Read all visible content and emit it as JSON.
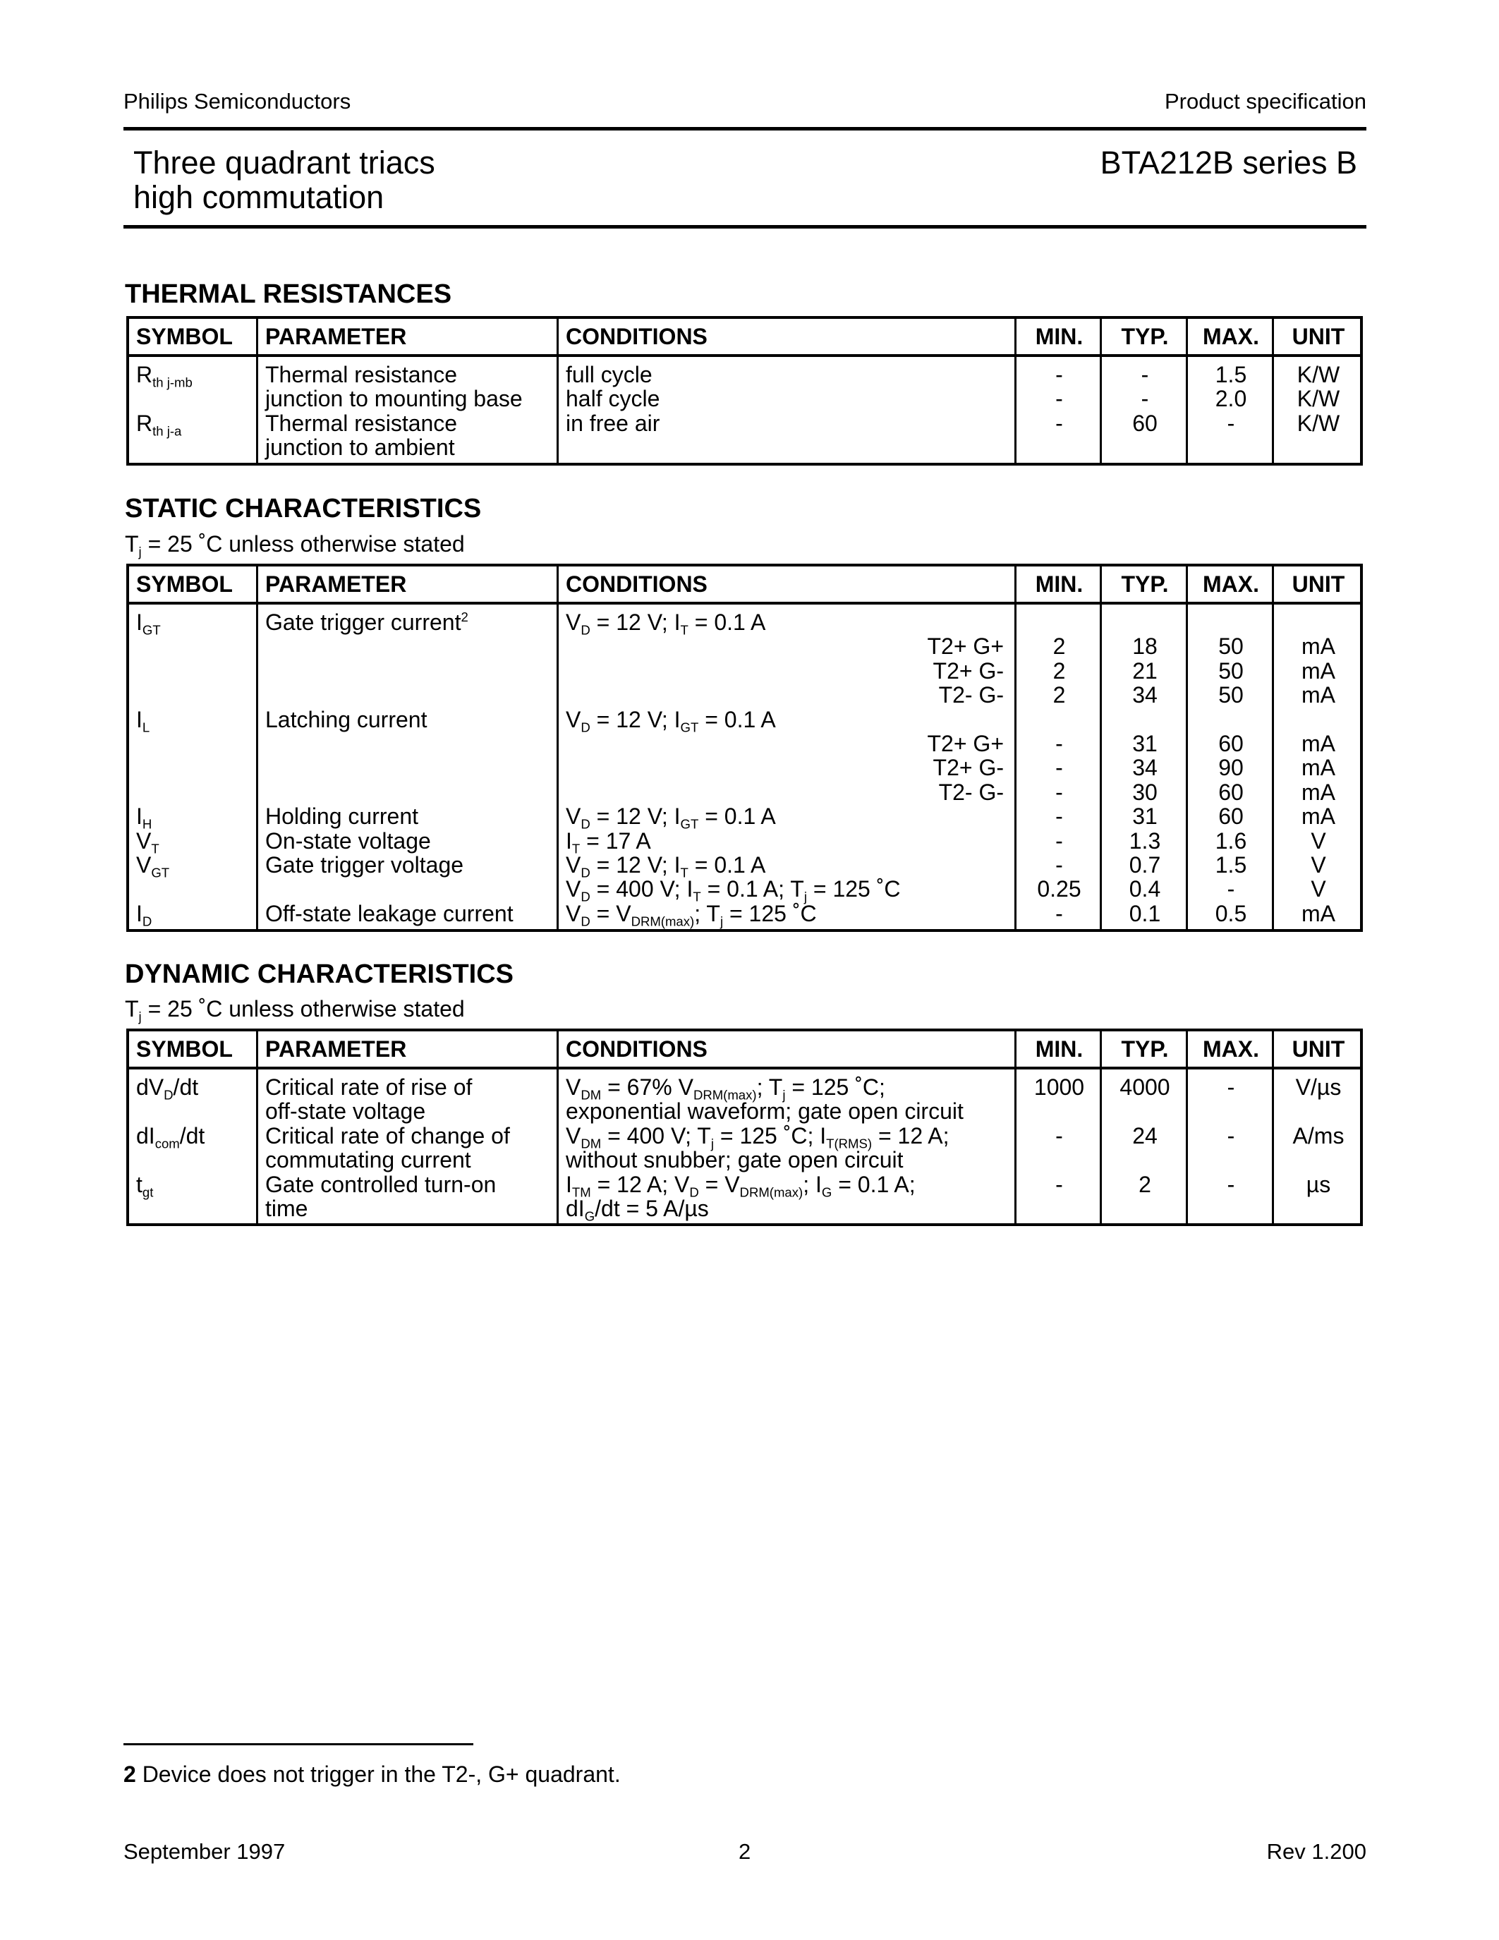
{
  "header": {
    "company": "Philips Semiconductors",
    "doc_type": "Product specification",
    "title_lines": [
      "Three quadrant triacs",
      "high commutation"
    ],
    "part": "BTA212B series B"
  },
  "columns": [
    "SYMBOL",
    "PARAMETER",
    "CONDITIONS",
    "MIN.",
    "TYP.",
    "MAX.",
    "UNIT"
  ],
  "thermal": {
    "title": "THERMAL RESISTANCES",
    "lines": [
      {
        "symbol": "R{th j-mb}",
        "parameter": "Thermal resistance",
        "conditions": "full cycle",
        "min": "-",
        "typ": "-",
        "max": "1.5",
        "unit": "K/W"
      },
      {
        "symbol": "",
        "parameter": "junction to mounting base",
        "conditions": "half cycle",
        "min": "-",
        "typ": "-",
        "max": "2.0",
        "unit": "K/W"
      },
      {
        "symbol": "R{th j-a}",
        "parameter": "Thermal resistance",
        "conditions": "in free air",
        "min": "-",
        "typ": "60",
        "max": "-",
        "unit": "K/W"
      },
      {
        "symbol": "",
        "parameter": "junction to ambient",
        "conditions": "",
        "min": "",
        "typ": "",
        "max": "",
        "unit": ""
      }
    ]
  },
  "static": {
    "title": "STATIC CHARACTERISTICS",
    "note": "T{j} = 25 ˚C unless otherwise stated",
    "lines": [
      {
        "symbol": "I{GT}",
        "parameter": "Gate trigger current^{2}",
        "conditions": "V{D} = 12 V; I{T} = 0.1 A",
        "min": "",
        "typ": "",
        "max": "",
        "unit": ""
      },
      {
        "symbol": "",
        "parameter": "",
        "conditions_right": "T2+ G+",
        "min": "2",
        "typ": "18",
        "max": "50",
        "unit": "mA"
      },
      {
        "symbol": "",
        "parameter": "",
        "conditions_right": "T2+ G-",
        "min": "2",
        "typ": "21",
        "max": "50",
        "unit": "mA"
      },
      {
        "symbol": "",
        "parameter": "",
        "conditions_right": "T2- G-",
        "min": "2",
        "typ": "34",
        "max": "50",
        "unit": "mA"
      },
      {
        "symbol": "I{L}",
        "parameter": "Latching current",
        "conditions": "V{D} = 12 V; I{GT} = 0.1 A",
        "min": "",
        "typ": "",
        "max": "",
        "unit": ""
      },
      {
        "symbol": "",
        "parameter": "",
        "conditions_right": "T2+ G+",
        "min": "-",
        "typ": "31",
        "max": "60",
        "unit": "mA"
      },
      {
        "symbol": "",
        "parameter": "",
        "conditions_right": "T2+ G-",
        "min": "-",
        "typ": "34",
        "max": "90",
        "unit": "mA"
      },
      {
        "symbol": "",
        "parameter": "",
        "conditions_right": "T2- G-",
        "min": "-",
        "typ": "30",
        "max": "60",
        "unit": "mA"
      },
      {
        "symbol": "I{H}",
        "parameter": "Holding current",
        "conditions": "V{D} = 12 V; I{GT} = 0.1 A",
        "min": "-",
        "typ": "31",
        "max": "60",
        "unit": "mA"
      },
      {
        "symbol": "V{T}",
        "parameter": "On-state voltage",
        "conditions": "I{T} = 17 A",
        "min": "-",
        "typ": "1.3",
        "max": "1.6",
        "unit": "V"
      },
      {
        "symbol": "V{GT}",
        "parameter": "Gate trigger voltage",
        "conditions": "V{D} = 12 V; I{T} = 0.1 A",
        "min": "-",
        "typ": "0.7",
        "max": "1.5",
        "unit": "V"
      },
      {
        "symbol": "",
        "parameter": "",
        "conditions": "V{D} = 400 V; I{T} = 0.1 A; T{j} = 125 ˚C",
        "min": "0.25",
        "typ": "0.4",
        "max": "-",
        "unit": "V"
      },
      {
        "symbol": "I{D}",
        "parameter": "Off-state leakage current",
        "conditions": "V{D} = V{DRM(max)}; T{j} = 125 ˚C",
        "min": "-",
        "typ": "0.1",
        "max": "0.5",
        "unit": "mA"
      }
    ]
  },
  "dynamic": {
    "title": "DYNAMIC CHARACTERISTICS",
    "note": "T{j} = 25 ˚C unless otherwise stated",
    "lines": [
      {
        "symbol": "dV{D}/dt",
        "parameter": "Critical rate of rise of",
        "conditions": "V{DM} = 67% V{DRM(max)}; T{j} = 125 ˚C;",
        "min": "1000",
        "typ": "4000",
        "max": "-",
        "unit": "V/µs"
      },
      {
        "symbol": "",
        "parameter": "off-state voltage",
        "conditions": "exponential waveform; gate open circuit",
        "min": "",
        "typ": "",
        "max": "",
        "unit": ""
      },
      {
        "symbol": "dI{com}/dt",
        "parameter": "Critical rate of change of",
        "conditions": "V{DM} = 400 V; T{j} = 125 ˚C; I{T(RMS)} = 12 A;",
        "min": "-",
        "typ": "24",
        "max": "-",
        "unit": "A/ms"
      },
      {
        "symbol": "",
        "parameter": "commutating current",
        "conditions": "without snubber; gate open circuit",
        "min": "",
        "typ": "",
        "max": "",
        "unit": ""
      },
      {
        "symbol": "t{gt}",
        "parameter": "Gate controlled turn-on",
        "conditions": "I{TM} = 12 A; V{D} = V{DRM(max)}; I{G} = 0.1 A;",
        "min": "-",
        "typ": "2",
        "max": "-",
        "unit": "µs"
      },
      {
        "symbol": "",
        "parameter": "time",
        "conditions": "dI{G}/dt = 5 A/µs",
        "min": "",
        "typ": "",
        "max": "",
        "unit": ""
      }
    ]
  },
  "footnote": {
    "number": "2",
    "text": "Device does not trigger in the T2-, G+ quadrant."
  },
  "footer": {
    "date": "September 1997",
    "page": "2",
    "revision": "Rev 1.200"
  }
}
